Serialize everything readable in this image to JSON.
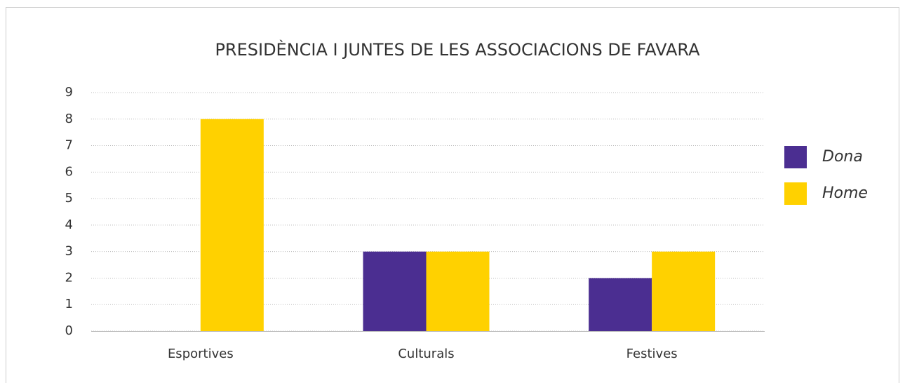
{
  "chart_data": {
    "type": "bar",
    "title": "PRESIDÈNCIA I JUNTES DE LES ASSOCIACIONS DE FAVARA",
    "categories": [
      "Esportives",
      "Culturals",
      "Festives"
    ],
    "series": [
      {
        "name": "Dona",
        "color": "#4b2e91",
        "values": [
          0,
          3,
          2
        ]
      },
      {
        "name": "Home",
        "color": "#ffd100",
        "values": [
          8,
          3,
          3
        ]
      }
    ],
    "ylim": [
      0,
      9
    ],
    "yticks": [
      0,
      1,
      2,
      3,
      4,
      5,
      6,
      7,
      8,
      9
    ],
    "grid": true,
    "legend": "right"
  }
}
